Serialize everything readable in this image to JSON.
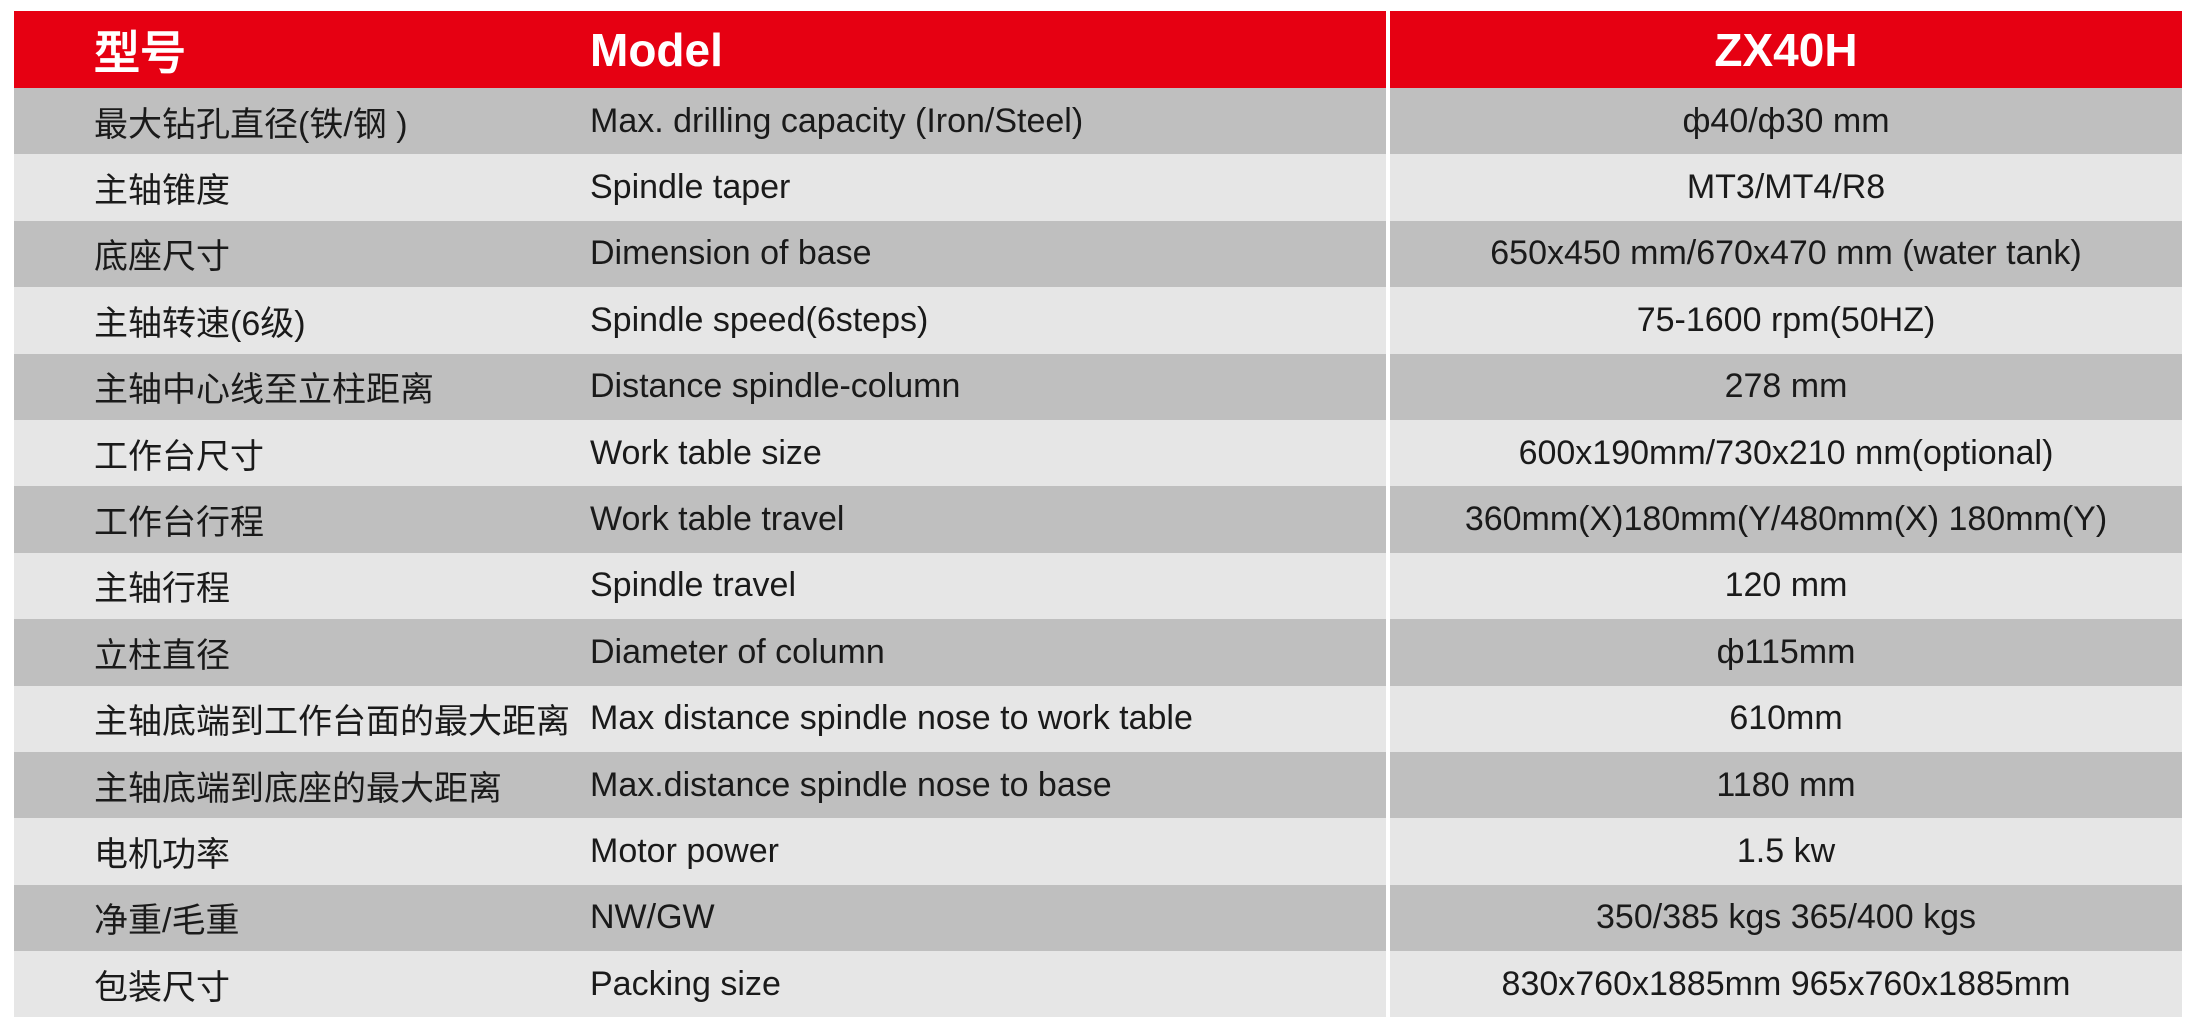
{
  "header": {
    "col_cn": "型号",
    "col_en": "Model",
    "col_value": "ZX40H"
  },
  "colors": {
    "header_bg": "#e60012",
    "row_dark": "#bfbfbf",
    "row_light": "#e6e6e6"
  },
  "rows": [
    {
      "cn": "最大钻孔直径(铁/钢 )",
      "en": "Max. drilling capacity (Iron/Steel)",
      "value": "ф40/ф30 mm"
    },
    {
      "cn": "主轴锥度",
      "en": "Spindle taper",
      "value": "MT3/MT4/R8"
    },
    {
      "cn": "底座尺寸",
      "en": "Dimension of base",
      "value": "650x450 mm/670x470 mm (water tank)"
    },
    {
      "cn": "主轴转速(6级)",
      "en": "Spindle speed(6steps)",
      "value": "75-1600 rpm(50HZ)"
    },
    {
      "cn": "主轴中心线至立柱距离",
      "en": "Distance spindle-column",
      "value": "278 mm"
    },
    {
      "cn": "工作台尺寸",
      "en": "Work table size",
      "value": "600x190mm/730x210 mm(optional)"
    },
    {
      "cn": "工作台行程",
      "en": "Work table travel",
      "value": "360mm(X)180mm(Y/480mm(X) 180mm(Y)"
    },
    {
      "cn": "主轴行程",
      "en": "Spindle travel",
      "value": "120 mm"
    },
    {
      "cn": "立柱直径",
      "en": "Diameter of column",
      "value": "ф115mm"
    },
    {
      "cn": "主轴底端到工作台面的最大距离",
      "en": "Max distance spindle nose to work table",
      "value": "610mm"
    },
    {
      "cn": "主轴底端到底座的最大距离",
      "en": "Max.distance spindle nose to base",
      "value": "1180 mm"
    },
    {
      "cn": "电机功率",
      "en": "Motor power",
      "value": "1.5 kw"
    },
    {
      "cn": "净重/毛重",
      "en": "NW/GW",
      "value": "350/385 kgs 365/400 kgs"
    },
    {
      "cn": "包装尺寸",
      "en": "Packing size",
      "value": "830x760x1885mm 965x760x1885mm"
    }
  ]
}
